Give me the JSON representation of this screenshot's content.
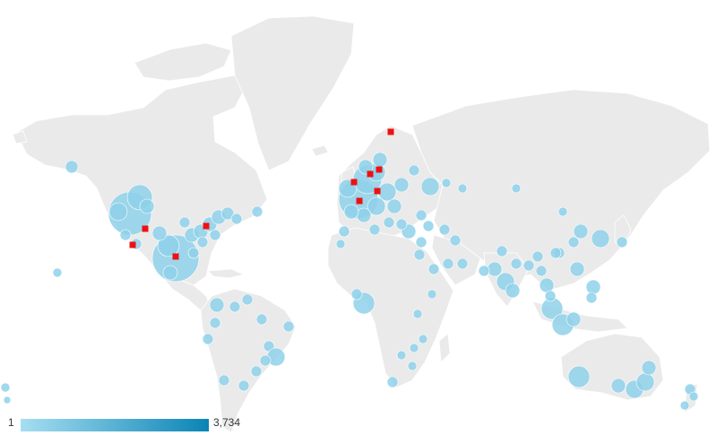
{
  "legend": {
    "min_label": "1",
    "max_label": "3,734",
    "color_low": "#a6def2",
    "color_high": "#0a84b5"
  },
  "colors": {
    "land": "#eaeaea",
    "bubble_light": "#8fd1ea",
    "bubble_dark": "#0e7fb0",
    "marker": "#ee1111"
  }
}
